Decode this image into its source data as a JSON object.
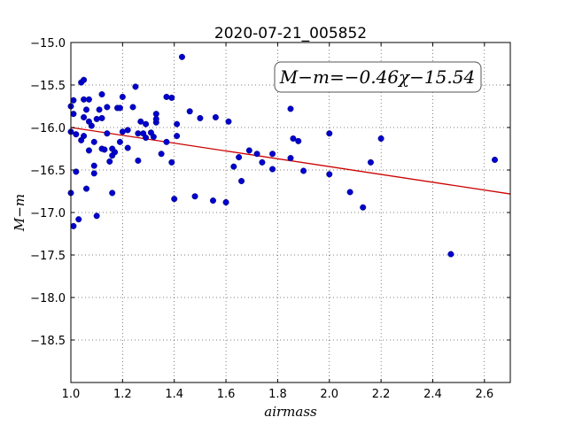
{
  "chart_data": {
    "type": "scatter",
    "title": "2020-07-21_005852",
    "xlabel": "airmass",
    "ylabel": "M−m",
    "xlim": [
      1.0,
      2.7
    ],
    "ylim": [
      -15.0,
      -19.0
    ],
    "y_inverted": true,
    "grid": true,
    "x_ticks": [
      1.0,
      1.2,
      1.4,
      1.6,
      1.8,
      2.0,
      2.2,
      2.4,
      2.6
    ],
    "x_tick_labels": [
      "1.0",
      "1.2",
      "1.4",
      "1.6",
      "1.8",
      "2.0",
      "2.2",
      "2.4",
      "2.6"
    ],
    "y_ticks": [
      -15.0,
      -15.5,
      -16.0,
      -16.5,
      -17.0,
      -17.5,
      -18.0,
      -18.5
    ],
    "y_tick_labels": [
      "−15.0",
      "−15.5",
      "−16.0",
      "−16.5",
      "−17.0",
      "−17.5",
      "−18.0",
      "−18.5"
    ],
    "point_color": "#0000cc",
    "fit_line": {
      "slope": -0.46,
      "intercept": -15.54,
      "color": "#cc0000"
    },
    "annotation": {
      "text": "M−m=−0.46χ−15.54",
      "placement": "top-right"
    },
    "points": [
      {
        "x": 1.0,
        "y": -15.75
      },
      {
        "x": 1.0,
        "y": -16.05
      },
      {
        "x": 1.0,
        "y": -16.77
      },
      {
        "x": 1.01,
        "y": -17.16
      },
      {
        "x": 1.01,
        "y": -15.68
      },
      {
        "x": 1.01,
        "y": -15.84
      },
      {
        "x": 1.02,
        "y": -16.52
      },
      {
        "x": 1.02,
        "y": -16.08
      },
      {
        "x": 1.03,
        "y": -17.08
      },
      {
        "x": 1.04,
        "y": -15.47
      },
      {
        "x": 1.04,
        "y": -16.15
      },
      {
        "x": 1.05,
        "y": -15.88
      },
      {
        "x": 1.05,
        "y": -15.67
      },
      {
        "x": 1.05,
        "y": -15.44
      },
      {
        "x": 1.05,
        "y": -16.1
      },
      {
        "x": 1.06,
        "y": -15.79
      },
      {
        "x": 1.06,
        "y": -16.72
      },
      {
        "x": 1.07,
        "y": -15.67
      },
      {
        "x": 1.07,
        "y": -15.93
      },
      {
        "x": 1.07,
        "y": -16.27
      },
      {
        "x": 1.08,
        "y": -15.98
      },
      {
        "x": 1.09,
        "y": -16.17
      },
      {
        "x": 1.09,
        "y": -16.54
      },
      {
        "x": 1.09,
        "y": -16.45
      },
      {
        "x": 1.1,
        "y": -15.9
      },
      {
        "x": 1.1,
        "y": -17.04
      },
      {
        "x": 1.11,
        "y": -15.79
      },
      {
        "x": 1.12,
        "y": -15.89
      },
      {
        "x": 1.12,
        "y": -16.25
      },
      {
        "x": 1.12,
        "y": -15.61
      },
      {
        "x": 1.13,
        "y": -16.26
      },
      {
        "x": 1.14,
        "y": -16.07
      },
      {
        "x": 1.14,
        "y": -15.76
      },
      {
        "x": 1.15,
        "y": -16.4
      },
      {
        "x": 1.16,
        "y": -16.25
      },
      {
        "x": 1.16,
        "y": -16.33
      },
      {
        "x": 1.16,
        "y": -16.77
      },
      {
        "x": 1.17,
        "y": -16.29
      },
      {
        "x": 1.18,
        "y": -15.77
      },
      {
        "x": 1.19,
        "y": -16.17
      },
      {
        "x": 1.19,
        "y": -15.77
      },
      {
        "x": 1.2,
        "y": -16.05
      },
      {
        "x": 1.2,
        "y": -15.64
      },
      {
        "x": 1.22,
        "y": -16.24
      },
      {
        "x": 1.22,
        "y": -16.03
      },
      {
        "x": 1.24,
        "y": -15.76
      },
      {
        "x": 1.25,
        "y": -15.52
      },
      {
        "x": 1.26,
        "y": -16.07
      },
      {
        "x": 1.26,
        "y": -16.39
      },
      {
        "x": 1.27,
        "y": -15.93
      },
      {
        "x": 1.28,
        "y": -16.07
      },
      {
        "x": 1.29,
        "y": -15.96
      },
      {
        "x": 1.29,
        "y": -16.12
      },
      {
        "x": 1.31,
        "y": -16.06
      },
      {
        "x": 1.32,
        "y": -16.11
      },
      {
        "x": 1.33,
        "y": -15.84
      },
      {
        "x": 1.33,
        "y": -15.94
      },
      {
        "x": 1.33,
        "y": -15.9
      },
      {
        "x": 1.35,
        "y": -16.31
      },
      {
        "x": 1.37,
        "y": -15.64
      },
      {
        "x": 1.37,
        "y": -16.17
      },
      {
        "x": 1.39,
        "y": -15.65
      },
      {
        "x": 1.39,
        "y": -16.41
      },
      {
        "x": 1.4,
        "y": -16.84
      },
      {
        "x": 1.41,
        "y": -15.96
      },
      {
        "x": 1.41,
        "y": -16.1
      },
      {
        "x": 1.43,
        "y": -15.17
      },
      {
        "x": 1.46,
        "y": -15.81
      },
      {
        "x": 1.48,
        "y": -16.81
      },
      {
        "x": 1.5,
        "y": -15.89
      },
      {
        "x": 1.55,
        "y": -16.86
      },
      {
        "x": 1.56,
        "y": -15.88
      },
      {
        "x": 1.6,
        "y": -16.88
      },
      {
        "x": 1.61,
        "y": -15.93
      },
      {
        "x": 1.63,
        "y": -16.46
      },
      {
        "x": 1.65,
        "y": -16.35
      },
      {
        "x": 1.66,
        "y": -16.63
      },
      {
        "x": 1.69,
        "y": -16.27
      },
      {
        "x": 1.72,
        "y": -16.31
      },
      {
        "x": 1.74,
        "y": -16.41
      },
      {
        "x": 1.78,
        "y": -16.31
      },
      {
        "x": 1.78,
        "y": -16.49
      },
      {
        "x": 1.85,
        "y": -15.78
      },
      {
        "x": 1.85,
        "y": -16.36
      },
      {
        "x": 1.86,
        "y": -16.13
      },
      {
        "x": 1.88,
        "y": -16.16
      },
      {
        "x": 1.9,
        "y": -16.51
      },
      {
        "x": 2.0,
        "y": -16.55
      },
      {
        "x": 2.0,
        "y": -16.07
      },
      {
        "x": 2.08,
        "y": -16.76
      },
      {
        "x": 2.13,
        "y": -16.94
      },
      {
        "x": 2.16,
        "y": -16.41
      },
      {
        "x": 2.2,
        "y": -16.13
      },
      {
        "x": 2.47,
        "y": -17.49
      },
      {
        "x": 2.64,
        "y": -16.38
      }
    ]
  }
}
